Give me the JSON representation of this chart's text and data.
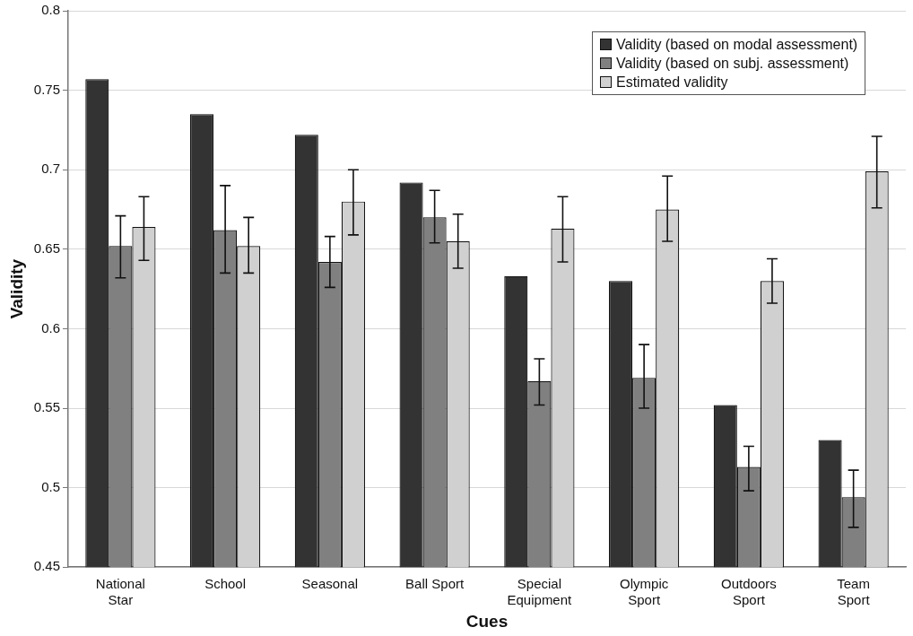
{
  "chart_data": {
    "type": "bar",
    "xlabel": "Cues",
    "ylabel": "Validity",
    "categories": [
      "National Star",
      "School",
      "Seasonal",
      "Ball Sport",
      "Special Equipment",
      "Olympic Sport",
      "Outdoors Sport",
      "Team Sport"
    ],
    "series": [
      {
        "name": "Validity (based on modal assessment)",
        "color": "#333333",
        "values": [
          0.757,
          0.735,
          0.722,
          0.692,
          0.633,
          0.63,
          0.552,
          0.53
        ]
      },
      {
        "name": "Validity (based on subj. assessment)",
        "color": "#808080",
        "values": [
          0.652,
          0.662,
          0.642,
          0.67,
          0.567,
          0.569,
          0.513,
          0.494
        ],
        "errors": [
          [
            0.632,
            0.671
          ],
          [
            0.635,
            0.69
          ],
          [
            0.626,
            0.658
          ],
          [
            0.654,
            0.687
          ],
          [
            0.552,
            0.581
          ],
          [
            0.55,
            0.59
          ],
          [
            0.498,
            0.526
          ],
          [
            0.475,
            0.511
          ]
        ]
      },
      {
        "name": "Estimated validity",
        "color": "#d0d0d0",
        "values": [
          0.664,
          0.652,
          0.68,
          0.655,
          0.663,
          0.675,
          0.63,
          0.699
        ],
        "errors": [
          [
            0.643,
            0.683
          ],
          [
            0.635,
            0.67
          ],
          [
            0.659,
            0.7
          ],
          [
            0.638,
            0.672
          ],
          [
            0.642,
            0.683
          ],
          [
            0.655,
            0.696
          ],
          [
            0.616,
            0.644
          ],
          [
            0.676,
            0.721
          ]
        ]
      }
    ],
    "ylim": [
      0.45,
      0.8
    ],
    "yticks": [
      0.45,
      0.5,
      0.55,
      0.6,
      0.65,
      0.7,
      0.75,
      0.8
    ],
    "grid": "y",
    "legend": "top right"
  }
}
